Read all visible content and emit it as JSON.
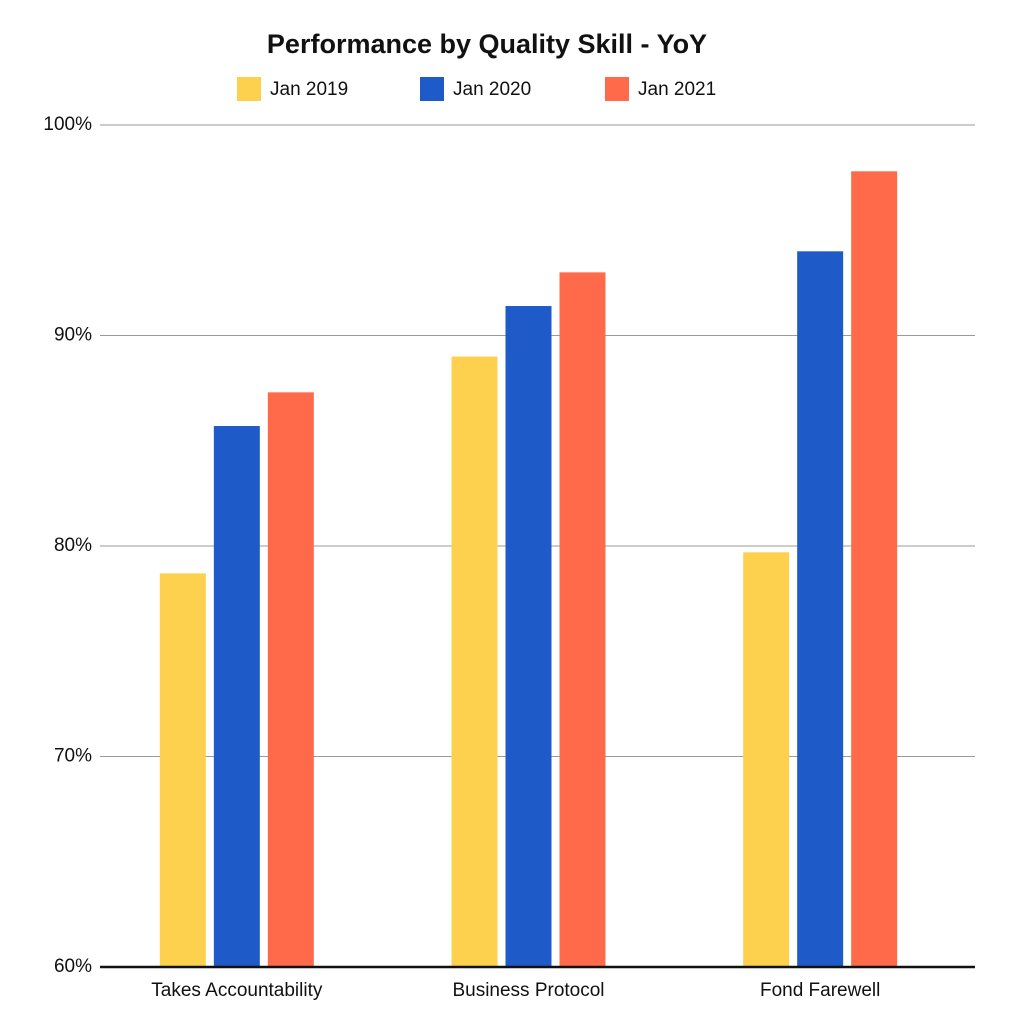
{
  "chart_data": {
    "type": "bar",
    "title": "Performance by Quality Skill - YoY",
    "categories": [
      "Takes Accountability",
      "Business Protocol",
      "Fond Farewell"
    ],
    "series": [
      {
        "name": "Jan 2019",
        "color": "#fdd14d",
        "values": [
          78.7,
          89.0,
          79.7
        ]
      },
      {
        "name": "Jan 2020",
        "color": "#1f5bc8",
        "values": [
          85.7,
          91.4,
          94.0
        ]
      },
      {
        "name": "Jan 2021",
        "color": "#ff6b4a",
        "values": [
          87.3,
          93.0,
          97.8
        ]
      }
    ],
    "ylim": [
      60,
      100
    ],
    "yticks": [
      {
        "value": 60,
        "label": "60%"
      },
      {
        "value": 70,
        "label": "70%"
      },
      {
        "value": 80,
        "label": "80%"
      },
      {
        "value": 90,
        "label": "90%"
      },
      {
        "value": 100,
        "label": "100%"
      }
    ],
    "grid": true,
    "legend": "top"
  }
}
